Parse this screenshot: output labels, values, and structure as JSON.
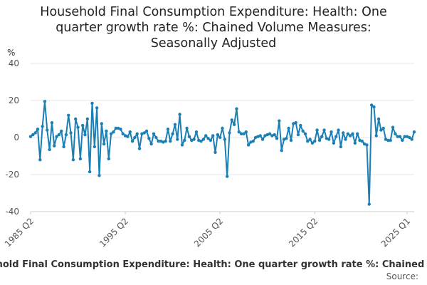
{
  "chart_data": {
    "type": "line",
    "title": "Household Final Consumption Expenditure: Health: One quarter growth rate %: Chained Volume Measures: Seasonally Adjusted",
    "title_lines": [
      "Household Final Consumption Expenditure: Health: One",
      "quarter growth rate %: Chained Volume Measures:",
      "Seasonally Adjusted"
    ],
    "ylabel": "%",
    "xlabel": "",
    "ylim": [
      -40,
      40
    ],
    "yticks": [
      -40,
      -20,
      0,
      20,
      40
    ],
    "xticks": [
      "1985 Q2",
      "1995 Q2",
      "2005 Q2",
      "2015 Q2",
      "2025 Q1"
    ],
    "x_start": "1985 Q2",
    "x_end": "2025 Q1",
    "grid": true,
    "series": [
      {
        "name": "Household Final Consumption Expenditure: Health: One quarter growth rate %: Chained Volume Measures: Seasonally Adjusted",
        "color": "#1a7fb5",
        "values": [
          0.5,
          1.5,
          2.5,
          4.5,
          -12.0,
          6.0,
          19.5,
          4.0,
          -6.5,
          8.0,
          -4.5,
          0.5,
          1.5,
          3.5,
          -5.0,
          1.5,
          12.0,
          2.5,
          -12.0,
          10.0,
          5.5,
          -11.5,
          6.5,
          1.5,
          10.0,
          -18.5,
          18.5,
          -5.0,
          16.0,
          -20.5,
          7.5,
          -3.5,
          3.5,
          -11.5,
          2.0,
          3.0,
          5.0,
          5.0,
          4.5,
          2.0,
          1.0,
          0.5,
          3.0,
          -2.0,
          0.0,
          2.0,
          -6.0,
          2.0,
          2.5,
          3.5,
          -0.5,
          -3.5,
          2.0,
          0.0,
          -2.0,
          -2.0,
          -2.5,
          -2.0,
          4.5,
          -2.0,
          2.0,
          7.0,
          -1.0,
          12.5,
          -4.0,
          -1.5,
          5.0,
          0.5,
          -1.5,
          -1.0,
          3.0,
          -1.5,
          -2.0,
          -1.0,
          1.0,
          -0.5,
          -1.5,
          1.0,
          -8.0,
          1.5,
          0.0,
          5.0,
          -1.0,
          -21.0,
          2.5,
          9.5,
          7.0,
          15.5,
          3.0,
          2.0,
          2.0,
          3.0,
          -4.0,
          -2.5,
          -2.0,
          0.0,
          0.5,
          1.0,
          -1.0,
          1.0,
          1.5,
          2.0,
          1.0,
          1.5,
          -0.5,
          9.0,
          -7.0,
          -1.0,
          -0.5,
          5.0,
          -1.5,
          7.5,
          8.0,
          1.5,
          6.5,
          3.5,
          2.0,
          -2.0,
          -1.0,
          -3.0,
          -2.0,
          4.0,
          -1.5,
          0.5,
          4.0,
          -0.5,
          -1.0,
          3.0,
          -3.0,
          0.5,
          4.0,
          -5.0,
          2.5,
          -1.0,
          2.0,
          1.0,
          2.0,
          -3.0,
          2.0,
          -1.5,
          -2.0,
          -3.5,
          -4.0,
          -36.0,
          17.5,
          16.5,
          1.0,
          10.0,
          4.0,
          5.0,
          -1.0,
          -1.5,
          -1.5,
          5.5,
          2.0,
          0.5,
          0.5,
          -1.5,
          0.5,
          0.5,
          0.0,
          -1.0,
          3.0
        ]
      }
    ],
    "legend": [
      "Household Final Consumption Expenditure: Health: One quarter growth rate %: Chained Volume Measures: Seasonally Adjusted"
    ],
    "source": "Source:"
  }
}
